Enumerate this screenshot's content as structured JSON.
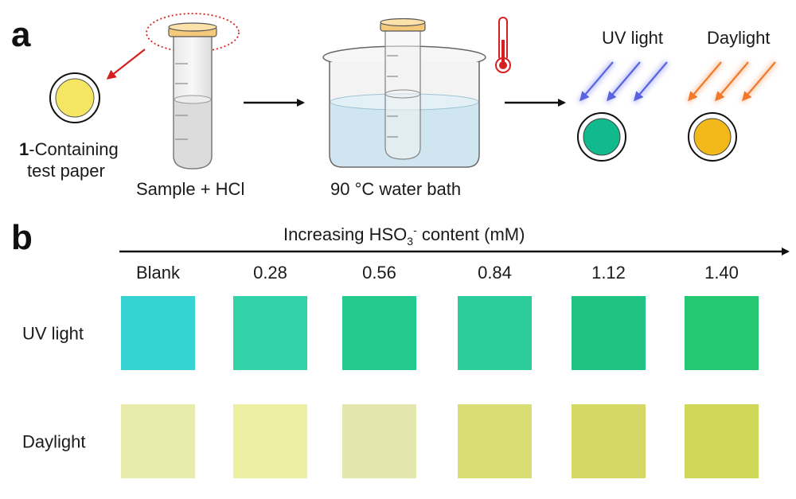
{
  "panel_a": {
    "label": "a",
    "paper_caption_bold": "1",
    "paper_caption_line1": "-Containing",
    "paper_caption_line2": "test paper",
    "tube_caption": "Sample + HCl",
    "bath_caption": "90 °C water bath",
    "uv_label": "UV light",
    "daylight_label": "Daylight",
    "colors": {
      "paper_yellow": "#f4e663",
      "result_uv": "#12b98c",
      "result_daylight": "#f3b81a",
      "uv_arrow": "#5a64e0",
      "daylight_arrow": "#f07a2a",
      "water": "#cfe6f0",
      "thermometer": "#d81e1e",
      "pointer_arrow": "#d62020"
    }
  },
  "panel_b": {
    "label": "b",
    "axis_prefix": "Increasing HSO",
    "axis_sub": "3",
    "axis_sup": "-",
    "axis_suffix": " content (mM)",
    "columns": [
      "Blank",
      "0.28",
      "0.56",
      "0.84",
      "1.12",
      "1.40"
    ],
    "rows": [
      {
        "label": "UV light",
        "colors": [
          "#2ad1d1",
          "#26d1a4",
          "#18c789",
          "#20c995",
          "#13c07a",
          "#18c46a"
        ]
      },
      {
        "label": "Daylight",
        "colors": [
          "#e7eaa6",
          "#ecee9e",
          "#e3e6a8",
          "#d6dc6c",
          "#d3d65c",
          "#cdd54e"
        ]
      }
    ]
  }
}
